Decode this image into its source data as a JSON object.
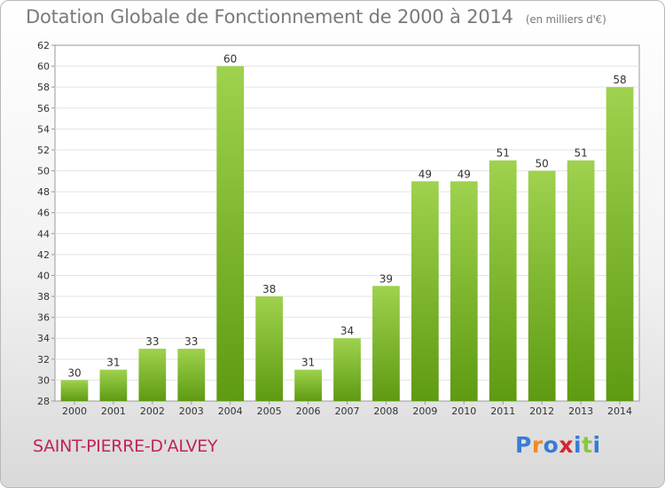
{
  "header": {
    "title": "Dotation Globale de Fonctionnement de 2000 à 2014",
    "units": "(en milliers d'€)"
  },
  "footer": {
    "commune": "SAINT-PIERRE-D'ALVEY",
    "logo_letters": [
      "P",
      "r",
      "o",
      "x",
      "i",
      "t",
      "i"
    ],
    "logo_colors": [
      "#3a7bd5",
      "#f08a24",
      "#3a7bd5",
      "#d6262e",
      "#3a7bd5",
      "#8dc63f",
      "#3a7bd5"
    ]
  },
  "chart_data": {
    "type": "bar",
    "categories": [
      "2000",
      "2001",
      "2002",
      "2003",
      "2004",
      "2005",
      "2006",
      "2007",
      "2008",
      "2009",
      "2010",
      "2011",
      "2012",
      "2013",
      "2014"
    ],
    "values": [
      30,
      31,
      33,
      33,
      60,
      38,
      31,
      34,
      39,
      49,
      49,
      51,
      50,
      51,
      58
    ],
    "title": "Dotation Globale de Fonctionnement de 2000 à 2014",
    "xlabel": "",
    "ylabel": "",
    "ylim": [
      28,
      62
    ],
    "yticks": [
      28,
      30,
      32,
      34,
      36,
      38,
      40,
      42,
      44,
      46,
      48,
      50,
      52,
      54,
      56,
      58,
      60,
      62
    ],
    "grid": true,
    "bar_color_top": "#9fd24e",
    "bar_color_bottom": "#5e9a12"
  }
}
